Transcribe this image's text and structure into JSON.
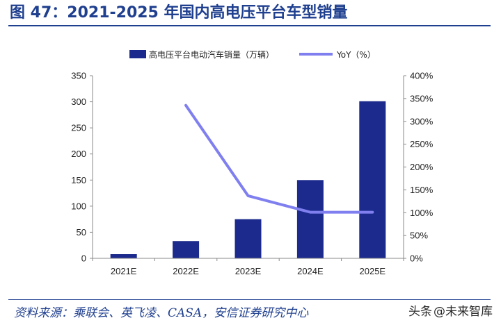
{
  "figure": {
    "title": "图 47：2021-2025 年国内高电压平台车型销量",
    "source": "资料来源：乘联会、英飞凌、CASA，安信证券研究中心",
    "watermark_prefix": "头条",
    "watermark_suffix": "@未来智库"
  },
  "chart_data": {
    "type": "bar",
    "categories": [
      "2021E",
      "2022E",
      "2023E",
      "2024E",
      "2025E"
    ],
    "series": [
      {
        "name": "高电压平台电动汽车销量（万辆）",
        "kind": "bar",
        "axis": "left",
        "color": "#1b2a8c",
        "values": [
          8,
          33,
          75,
          150,
          301
        ]
      },
      {
        "name": "YoY（%）",
        "kind": "line",
        "axis": "right",
        "color": "#7f7ff0",
        "values": [
          null,
          335,
          137,
          101,
          101
        ]
      }
    ],
    "y_left": {
      "ylim": [
        0,
        350
      ],
      "ticks": [
        0,
        50,
        100,
        150,
        200,
        250,
        300,
        350
      ]
    },
    "y_right": {
      "ylim": [
        0,
        400
      ],
      "ticks": [
        0,
        50,
        100,
        150,
        200,
        250,
        300,
        350,
        400
      ],
      "unit_suffix": "%"
    },
    "legend": "top",
    "grid": false
  }
}
